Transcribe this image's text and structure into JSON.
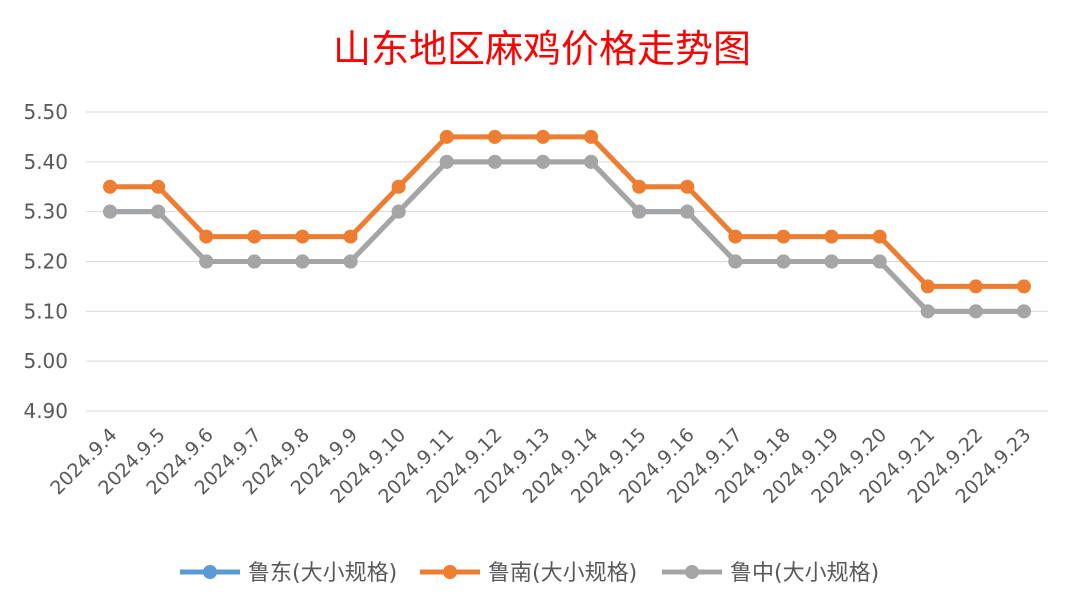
{
  "chart_data": {
    "type": "line",
    "title": "山东地区麻鸡价格走势图",
    "title_color": "#ff0000",
    "xlabel": "",
    "ylabel": "",
    "categories": [
      "2024.9.4",
      "2024.9.5",
      "2024.9.6",
      "2024.9.7",
      "2024.9.8",
      "2024.9.9",
      "2024.9.10",
      "2024.9.11",
      "2024.9.12",
      "2024.9.13",
      "2024.9.14",
      "2024.9.15",
      "2024.9.16",
      "2024.9.17",
      "2024.9.18",
      "2024.9.19",
      "2024.9.20",
      "2024.9.21",
      "2024.9.22",
      "2024.9.23"
    ],
    "ylim": [
      4.9,
      5.5
    ],
    "yticks": [
      "4.90",
      "5.00",
      "5.10",
      "5.20",
      "5.30",
      "5.40",
      "5.50"
    ],
    "grid": true,
    "legend_position": "bottom",
    "series": [
      {
        "name": "鲁东(大小规格)",
        "color": "#5b9bd5",
        "values": [
          5.3,
          5.3,
          5.2,
          5.2,
          5.2,
          5.2,
          5.3,
          5.4,
          5.4,
          5.4,
          5.4,
          5.3,
          5.3,
          5.2,
          5.2,
          5.2,
          5.2,
          5.1,
          5.1,
          5.1
        ]
      },
      {
        "name": "鲁南(大小规格)",
        "color": "#ed7d31",
        "values": [
          5.35,
          5.35,
          5.25,
          5.25,
          5.25,
          5.25,
          5.35,
          5.45,
          5.45,
          5.45,
          5.45,
          5.35,
          5.35,
          5.25,
          5.25,
          5.25,
          5.25,
          5.15,
          5.15,
          5.15
        ]
      },
      {
        "name": "鲁中(大小规格)",
        "color": "#a5a5a5",
        "values": [
          5.3,
          5.3,
          5.2,
          5.2,
          5.2,
          5.2,
          5.3,
          5.4,
          5.4,
          5.4,
          5.4,
          5.3,
          5.3,
          5.2,
          5.2,
          5.2,
          5.2,
          5.1,
          5.1,
          5.1
        ]
      }
    ]
  }
}
